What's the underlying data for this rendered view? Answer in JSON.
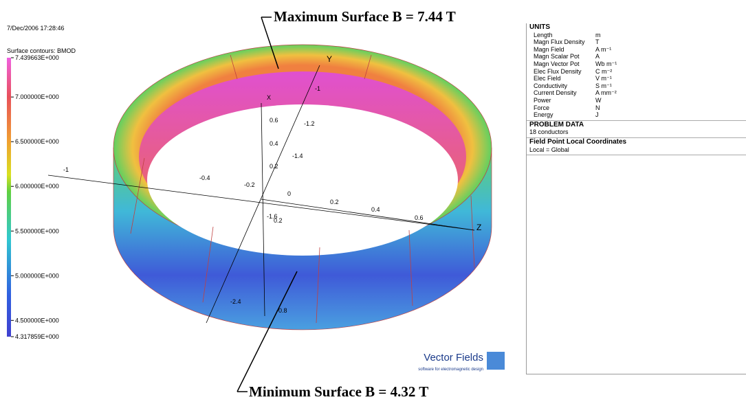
{
  "timestamp": "7/Dec/2006 17:28:46",
  "contour_title": "Surface contours: BMOD",
  "colorbar": {
    "range": [
      4.317859,
      7.439663
    ],
    "ticks": [
      {
        "value": 7.439663,
        "label": "7.439663E+000"
      },
      {
        "value": 7.0,
        "label": "7.000000E+000"
      },
      {
        "value": 6.5,
        "label": "6.500000E+000"
      },
      {
        "value": 6.0,
        "label": "6.000000E+000"
      },
      {
        "value": 5.5,
        "label": "5.500000E+000"
      },
      {
        "value": 5.0,
        "label": "5.000000E+000"
      },
      {
        "value": 4.5,
        "label": "4.500000E+000"
      },
      {
        "value": 4.317859,
        "label": "4.317859E+000"
      }
    ]
  },
  "annotations": {
    "max": "Maximum Surface B = 7.44 T",
    "min": "Minimum Surface B = 4.32 T"
  },
  "axes": {
    "x": "X",
    "y": "Y",
    "z": "Z",
    "x_ticks": [
      "0.6",
      "0.4",
      "0.2",
      "0"
    ],
    "z_ticks": [
      "-0.4",
      "-0.2",
      "0.2",
      "0.4",
      "0.6"
    ],
    "y_ticks": [
      "-1",
      "-1.2",
      "-1.4",
      "-1.6"
    ],
    "other_ticks": [
      "-1",
      "0.2",
      "-2.4",
      "-0.8"
    ]
  },
  "units_panel": {
    "title": "UNITS",
    "rows": [
      [
        "Length",
        "m"
      ],
      [
        "Magn Flux Density",
        "T"
      ],
      [
        "Magn Field",
        "A m⁻¹"
      ],
      [
        "Magn Scalar Pot",
        "A"
      ],
      [
        "Magn Vector Pot",
        "Wb m⁻¹"
      ],
      [
        "Elec Flux Density",
        "C m⁻²"
      ],
      [
        "Elec Field",
        "V m⁻¹"
      ],
      [
        "Conductivity",
        "S m⁻¹"
      ],
      [
        "Current Density",
        "A mm⁻²"
      ],
      [
        "Power",
        "W"
      ],
      [
        "Force",
        "N"
      ],
      [
        "Energy",
        "J"
      ]
    ],
    "problem_title": "PROBLEM DATA",
    "problem_text": "18 conductors",
    "coords_title": "Field Point Local Coordinates",
    "coords_text": "Local = Global"
  },
  "logo": {
    "name": "Vector Fields",
    "tagline": "software for electromagnetic design"
  }
}
